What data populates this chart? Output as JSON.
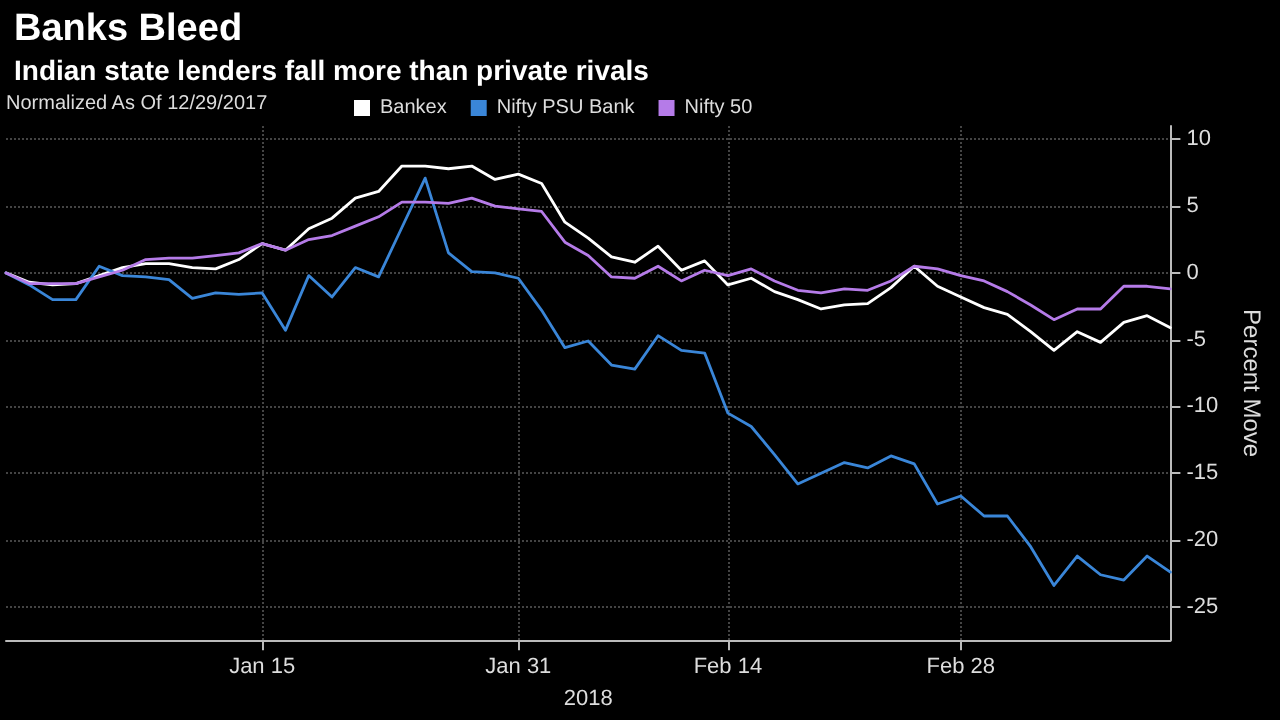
{
  "chart_data": {
    "type": "line",
    "title": "Banks Bleed",
    "subtitle": "Indian state lenders fall more than private rivals",
    "legend_title": "Normalized As Of 12/29/2017",
    "xlabel": "2018",
    "ylabel": "Percent Move",
    "categories": [
      null,
      null,
      null,
      null,
      null,
      null,
      null,
      null,
      null,
      null,
      null,
      "Jan 15",
      null,
      null,
      null,
      null,
      null,
      null,
      null,
      null,
      null,
      null,
      "Jan 31",
      null,
      null,
      null,
      null,
      null,
      null,
      null,
      null,
      "Feb 14",
      null,
      null,
      null,
      null,
      null,
      null,
      null,
      null,
      null,
      "Feb 28",
      null,
      null,
      null,
      null,
      null,
      null,
      null,
      null,
      null
    ],
    "ylim": [
      -27.5,
      11
    ],
    "yticks": [
      -25,
      -20,
      -15,
      -10,
      -5,
      0,
      5,
      10
    ],
    "grid": true,
    "legend": "top left",
    "marker": "none",
    "line_style": "solid",
    "series": [
      {
        "name": "Bankex",
        "color": "#ffffff",
        "values": [
          0,
          -0.7,
          -0.9,
          -0.8,
          -0.2,
          0.4,
          0.7,
          0.7,
          0.4,
          0.3,
          1.0,
          2.2,
          1.7,
          3.3,
          4.1,
          5.6,
          6.1,
          8.0,
          8.0,
          7.8,
          8.0,
          7.0,
          7.4,
          6.7,
          3.8,
          2.6,
          1.2,
          0.8,
          2.0,
          0.2,
          0.9,
          -0.9,
          -0.4,
          -1.4,
          -2.0,
          -2.7,
          -2.4,
          -2.3,
          -1.1,
          0.5,
          -1.0,
          -1.8,
          -2.6,
          -3.1,
          -4.4,
          -5.8,
          -4.4,
          -5.2,
          -3.7,
          -3.2,
          -4.1
        ]
      },
      {
        "name": "Nifty PSU Bank",
        "color": "#3a86d8",
        "values": [
          0,
          -0.9,
          -2.0,
          -2.0,
          0.5,
          -0.2,
          -0.3,
          -0.5,
          -1.9,
          -1.5,
          -1.6,
          -1.5,
          -4.3,
          -0.2,
          -1.8,
          0.4,
          -0.3,
          3.4,
          7.1,
          1.5,
          0.1,
          0.0,
          -0.4,
          -2.8,
          -5.6,
          -5.1,
          -6.9,
          -7.2,
          -4.7,
          -5.8,
          -6.0,
          -10.5,
          -11.5,
          -13.6,
          -15.8,
          -15.0,
          -14.2,
          -14.6,
          -13.7,
          -14.3,
          -17.3,
          -16.7,
          -18.2,
          -18.2,
          -20.5,
          -23.4,
          -21.2,
          -22.6,
          -23.0,
          -21.2,
          -22.4
        ]
      },
      {
        "name": "Nifty 50",
        "color": "#b57be8",
        "values": [
          0,
          -0.8,
          -0.8,
          -0.8,
          -0.3,
          0.2,
          1.0,
          1.1,
          1.1,
          1.3,
          1.5,
          2.2,
          1.7,
          2.5,
          2.8,
          3.5,
          4.2,
          5.3,
          5.3,
          5.2,
          5.6,
          5.0,
          4.8,
          4.6,
          2.3,
          1.3,
          -0.3,
          -0.4,
          0.5,
          -0.6,
          0.2,
          -0.2,
          0.3,
          -0.6,
          -1.3,
          -1.5,
          -1.2,
          -1.3,
          -0.6,
          0.5,
          0.3,
          -0.2,
          -0.6,
          -1.4,
          -2.4,
          -3.5,
          -2.7,
          -2.7,
          -1.0,
          -1.0,
          -1.2
        ]
      }
    ]
  }
}
